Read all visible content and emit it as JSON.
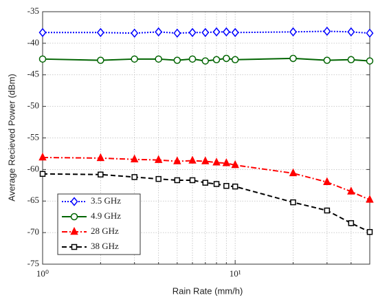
{
  "chart_data": {
    "type": "line",
    "xlabel": "Rain Rate (mm/h)",
    "ylabel": "Average Recieved Power (dBm)",
    "xscale": "log",
    "xlim": [
      1,
      50
    ],
    "ylim": [
      -75,
      -35
    ],
    "xticks": [
      {
        "value": 1,
        "label": "10⁰"
      },
      {
        "value": 10,
        "label": "10¹"
      }
    ],
    "xminor": [
      2,
      3,
      4,
      5,
      6,
      7,
      8,
      9,
      20,
      30,
      40
    ],
    "yticks": [
      -75,
      -70,
      -65,
      -60,
      -55,
      -50,
      -45,
      -40,
      -35
    ],
    "grid": true,
    "legend": "lower left",
    "x": [
      1,
      2,
      3,
      4,
      5,
      6,
      7,
      8,
      9,
      10,
      20,
      30,
      40,
      50
    ],
    "series": [
      {
        "name": "3.5 GHz",
        "color": "#0000ff",
        "dash": "dotted",
        "marker": "diamond",
        "values": [
          -38.3,
          -38.3,
          -38.4,
          -38.2,
          -38.4,
          -38.3,
          -38.3,
          -38.2,
          -38.2,
          -38.3,
          -38.2,
          -38.1,
          -38.2,
          -38.4
        ]
      },
      {
        "name": "4.9 GHz",
        "color": "#006400",
        "dash": "solid",
        "marker": "circle",
        "values": [
          -42.5,
          -42.7,
          -42.5,
          -42.5,
          -42.7,
          -42.5,
          -42.8,
          -42.6,
          -42.4,
          -42.6,
          -42.4,
          -42.7,
          -42.6,
          -42.8
        ]
      },
      {
        "name": "28 GHz",
        "color": "#ff0000",
        "dash": "dashdot",
        "marker": "triangle",
        "values": [
          -58.1,
          -58.2,
          -58.4,
          -58.5,
          -58.7,
          -58.6,
          -58.7,
          -58.9,
          -59.0,
          -59.3,
          -60.6,
          -62.0,
          -63.5,
          -64.8
        ]
      },
      {
        "name": "38 GHz",
        "color": "#000000",
        "dash": "dashed",
        "marker": "square",
        "values": [
          -60.7,
          -60.8,
          -61.2,
          -61.5,
          -61.7,
          -61.7,
          -62.1,
          -62.3,
          -62.6,
          -62.7,
          -65.2,
          -66.5,
          -68.5,
          -69.9
        ]
      }
    ]
  }
}
